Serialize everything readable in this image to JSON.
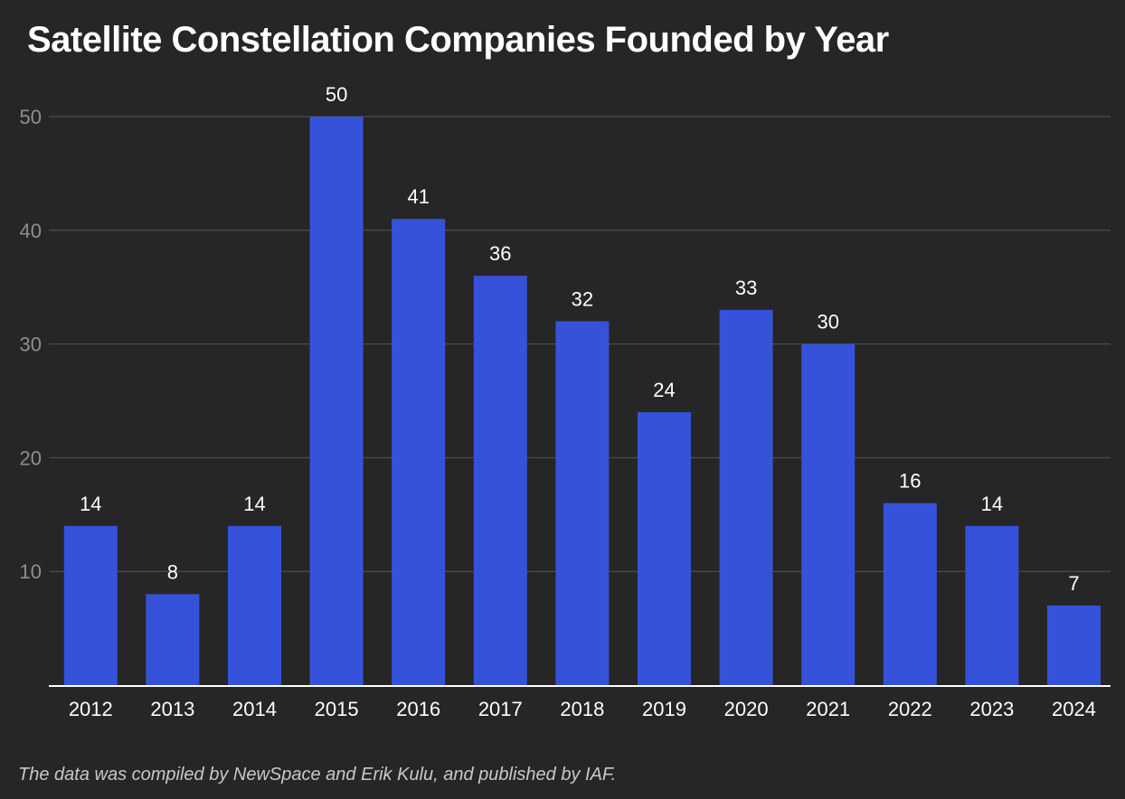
{
  "chart_data": {
    "type": "bar",
    "title": "Satellite Constellation Companies Founded by Year",
    "categories": [
      "2012",
      "2013",
      "2014",
      "2015",
      "2016",
      "2017",
      "2018",
      "2019",
      "2020",
      "2021",
      "2022",
      "2023",
      "2024"
    ],
    "values": [
      14,
      8,
      14,
      50,
      41,
      36,
      32,
      24,
      33,
      30,
      16,
      14,
      7
    ],
    "xlabel": "",
    "ylabel": "",
    "ylim": [
      0,
      50
    ],
    "yticks": [
      "10",
      "20",
      "30",
      "40",
      "50"
    ],
    "grid": true,
    "legend": "none",
    "data_labels": true,
    "bar_color": "#3652db",
    "footnote": "The data was compiled by NewSpace and Erik Kulu, and published by IAF."
  }
}
